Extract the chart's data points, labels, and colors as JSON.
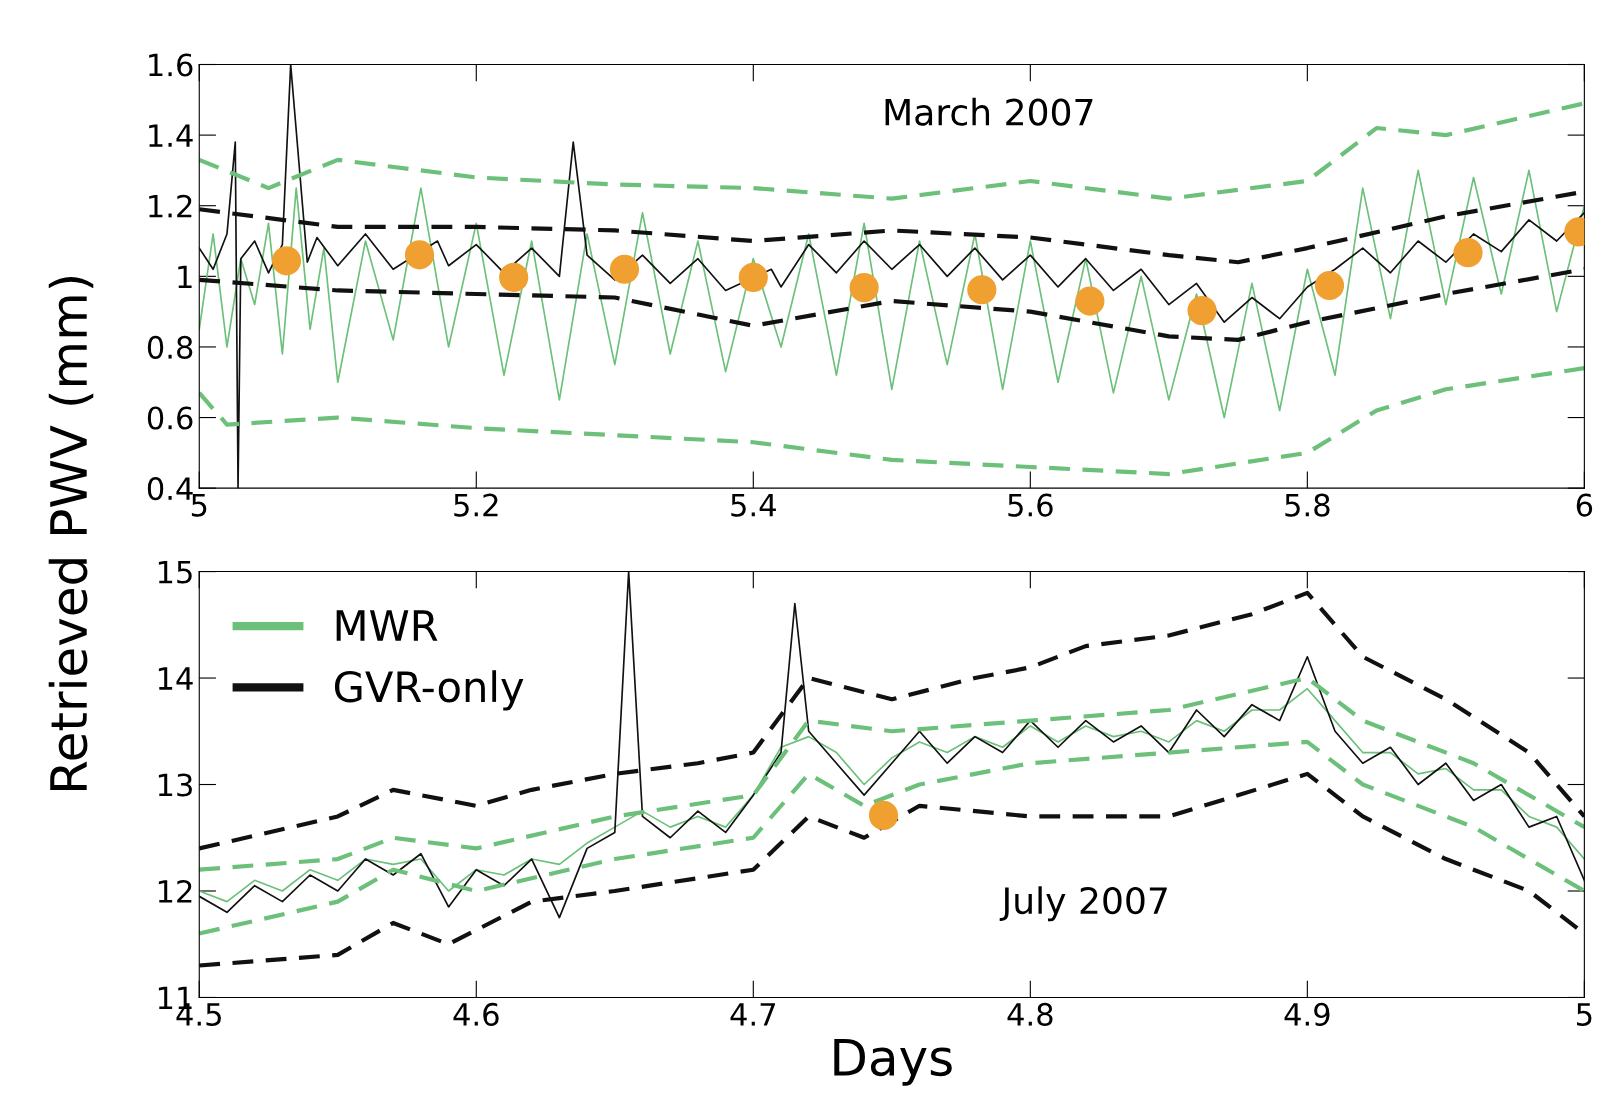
{
  "chart_data": [
    {
      "type": "line",
      "ylabel": "Retrieved PWV (mm)",
      "annotations": [
        "March 2007"
      ],
      "xlim": [
        5,
        6
      ],
      "xticks": [
        5,
        5.2,
        5.4,
        5.6,
        5.8,
        6
      ],
      "ylim": [
        0.4,
        1.6
      ],
      "yticks": [
        0.4,
        0.6,
        0.8,
        1,
        1.2,
        1.4,
        1.6
      ],
      "grid": false,
      "legend": false,
      "series": [
        {
          "color": "#6cc07a",
          "x": [
            5.0,
            5.01,
            5.02,
            5.03,
            5.04,
            5.05,
            5.06,
            5.07,
            5.08,
            5.09,
            5.1,
            5.12,
            5.14,
            5.16,
            5.18,
            5.2,
            5.22,
            5.24,
            5.26,
            5.28,
            5.3,
            5.32,
            5.34,
            5.36,
            5.38,
            5.4,
            5.42,
            5.44,
            5.46,
            5.48,
            5.5,
            5.52,
            5.54,
            5.56,
            5.58,
            5.6,
            5.62,
            5.64,
            5.66,
            5.68,
            5.7,
            5.72,
            5.74,
            5.76,
            5.78,
            5.8,
            5.82,
            5.84,
            5.86,
            5.88,
            5.9,
            5.92,
            5.94,
            5.96,
            5.98,
            6.0
          ],
          "values": [
            0.85,
            1.12,
            0.8,
            1.05,
            0.92,
            1.15,
            0.78,
            1.25,
            0.85,
            1.08,
            0.7,
            1.1,
            0.82,
            1.25,
            0.8,
            1.15,
            0.72,
            1.1,
            0.65,
            1.12,
            0.75,
            1.18,
            0.78,
            1.1,
            0.73,
            1.05,
            0.8,
            1.12,
            0.72,
            1.15,
            0.68,
            1.1,
            0.75,
            1.12,
            0.68,
            1.1,
            0.7,
            1.05,
            0.67,
            1.0,
            0.65,
            0.95,
            0.6,
            0.98,
            0.62,
            1.02,
            0.72,
            1.25,
            0.88,
            1.3,
            0.92,
            1.28,
            0.95,
            1.3,
            0.9,
            1.2
          ]
        },
        {
          "color": "#111111",
          "x": [
            5.0,
            5.01,
            5.02,
            5.026,
            5.028,
            5.03,
            5.04,
            5.05,
            5.06,
            5.066,
            5.078,
            5.085,
            5.1,
            5.12,
            5.14,
            5.172,
            5.18,
            5.2,
            5.22,
            5.24,
            5.26,
            5.27,
            5.28,
            5.3,
            5.32,
            5.34,
            5.36,
            5.38,
            5.413,
            5.42,
            5.44,
            5.46,
            5.48,
            5.5,
            5.52,
            5.54,
            5.56,
            5.58,
            5.6,
            5.62,
            5.64,
            5.66,
            5.68,
            5.7,
            5.72,
            5.74,
            5.76,
            5.78,
            5.8,
            5.82,
            5.84,
            5.86,
            5.88,
            5.9,
            5.92,
            5.94,
            5.96,
            5.98,
            6.0
          ],
          "values": [
            1.08,
            1.02,
            1.12,
            1.38,
            0.4,
            1.05,
            1.1,
            1.01,
            1.09,
            1.6,
            1.04,
            1.11,
            1.03,
            1.12,
            1.02,
            1.1,
            1.03,
            1.09,
            1.01,
            1.08,
            1.0,
            1.38,
            1.06,
            0.99,
            1.06,
            0.98,
            1.05,
            0.96,
            1.02,
            0.97,
            1.09,
            1.01,
            1.1,
            1.02,
            1.09,
            1.0,
            1.08,
            0.99,
            1.06,
            0.97,
            1.05,
            0.96,
            1.02,
            0.92,
            0.98,
            0.87,
            0.94,
            0.88,
            0.97,
            1.02,
            1.08,
            1.01,
            1.1,
            1.04,
            1.12,
            1.07,
            1.16,
            1.1,
            1.18
          ]
        },
        {
          "color": "#6cc07a",
          "line_style": "dashed",
          "x": [
            5.0,
            5.05,
            5.1,
            5.2,
            5.3,
            5.4,
            5.5,
            5.6,
            5.7,
            5.8,
            5.85,
            5.9,
            6.0
          ],
          "values": [
            1.33,
            1.25,
            1.33,
            1.28,
            1.26,
            1.25,
            1.22,
            1.27,
            1.22,
            1.27,
            1.42,
            1.4,
            1.49
          ]
        },
        {
          "color": "#6cc07a",
          "line_style": "dashed",
          "x": [
            5.0,
            5.02,
            5.1,
            5.2,
            5.3,
            5.4,
            5.5,
            5.6,
            5.7,
            5.8,
            5.85,
            5.9,
            6.0
          ],
          "values": [
            0.67,
            0.58,
            0.6,
            0.57,
            0.55,
            0.53,
            0.48,
            0.46,
            0.44,
            0.5,
            0.62,
            0.68,
            0.74
          ]
        },
        {
          "color": "#111111",
          "line_style": "dashed",
          "x": [
            5.0,
            5.1,
            5.2,
            5.3,
            5.4,
            5.5,
            5.6,
            5.7,
            5.75,
            5.8,
            5.9,
            6.0
          ],
          "values": [
            1.19,
            1.14,
            1.14,
            1.13,
            1.1,
            1.13,
            1.11,
            1.06,
            1.04,
            1.08,
            1.17,
            1.24
          ]
        },
        {
          "color": "#111111",
          "line_style": "dashed",
          "x": [
            5.0,
            5.1,
            5.2,
            5.3,
            5.4,
            5.5,
            5.6,
            5.7,
            5.75,
            5.8,
            5.9,
            6.0
          ],
          "values": [
            0.99,
            0.96,
            0.95,
            0.94,
            0.86,
            0.93,
            0.9,
            0.83,
            0.82,
            0.87,
            0.95,
            1.02
          ]
        },
        {
          "type": "scatter",
          "marker": "circle",
          "color": "#f0a030",
          "x": [
            5.063,
            5.159,
            5.227,
            5.307,
            5.4,
            5.48,
            5.565,
            5.643,
            5.724,
            5.816,
            5.916,
            5.996
          ],
          "values": [
            1.044,
            1.061,
            0.997,
            1.02,
            0.997,
            0.968,
            0.962,
            0.93,
            0.903,
            0.974,
            1.067,
            1.126
          ]
        }
      ]
    },
    {
      "type": "line",
      "xlabel": "Days",
      "annotations": [
        "July 2007"
      ],
      "xlim": [
        4.5,
        5
      ],
      "xticks": [
        4.5,
        4.6,
        4.7,
        4.8,
        4.9,
        5
      ],
      "ylim": [
        11,
        15
      ],
      "yticks": [
        11,
        12,
        13,
        14,
        15
      ],
      "grid": false,
      "legend": "top left",
      "series": [
        {
          "name": "MWR",
          "color": "#6cc07a",
          "x": [
            4.5,
            4.51,
            4.52,
            4.53,
            4.54,
            4.55,
            4.56,
            4.57,
            4.58,
            4.59,
            4.6,
            4.61,
            4.62,
            4.63,
            4.64,
            4.65,
            4.66,
            4.67,
            4.68,
            4.69,
            4.7,
            4.71,
            4.72,
            4.73,
            4.74,
            4.75,
            4.76,
            4.77,
            4.78,
            4.79,
            4.8,
            4.81,
            4.82,
            4.83,
            4.84,
            4.85,
            4.86,
            4.87,
            4.88,
            4.89,
            4.9,
            4.91,
            4.92,
            4.93,
            4.94,
            4.95,
            4.96,
            4.97,
            4.98,
            4.99,
            5.0
          ],
          "values": [
            12.0,
            11.9,
            12.1,
            12.0,
            12.2,
            12.1,
            12.3,
            12.25,
            12.3,
            12.0,
            12.2,
            12.15,
            12.3,
            12.25,
            12.45,
            12.6,
            12.75,
            12.6,
            12.7,
            12.6,
            12.9,
            13.35,
            13.45,
            13.3,
            13.0,
            13.25,
            13.4,
            13.3,
            13.45,
            13.35,
            13.55,
            13.4,
            13.55,
            13.45,
            13.5,
            13.4,
            13.6,
            13.5,
            13.7,
            13.7,
            13.9,
            13.6,
            13.3,
            13.3,
            13.1,
            13.15,
            12.95,
            12.95,
            12.7,
            12.6,
            12.3
          ]
        },
        {
          "name": "GVR-only",
          "color": "#111111",
          "x": [
            4.5,
            4.51,
            4.52,
            4.53,
            4.54,
            4.55,
            4.56,
            4.57,
            4.58,
            4.59,
            4.6,
            4.61,
            4.62,
            4.63,
            4.64,
            4.65,
            4.655,
            4.66,
            4.67,
            4.68,
            4.69,
            4.7,
            4.71,
            4.715,
            4.72,
            4.73,
            4.74,
            4.75,
            4.76,
            4.77,
            4.78,
            4.79,
            4.8,
            4.81,
            4.82,
            4.83,
            4.84,
            4.85,
            4.86,
            4.87,
            4.88,
            4.89,
            4.9,
            4.91,
            4.92,
            4.93,
            4.94,
            4.95,
            4.96,
            4.97,
            4.98,
            4.99,
            5.0
          ],
          "values": [
            11.95,
            11.8,
            12.05,
            11.9,
            12.15,
            12.0,
            12.3,
            12.15,
            12.35,
            11.85,
            12.2,
            12.05,
            12.3,
            11.75,
            12.4,
            12.55,
            15.0,
            12.7,
            12.5,
            12.75,
            12.55,
            12.9,
            13.3,
            14.7,
            13.5,
            13.2,
            12.9,
            13.2,
            13.5,
            13.2,
            13.45,
            13.3,
            13.6,
            13.35,
            13.6,
            13.4,
            13.55,
            13.3,
            13.7,
            13.45,
            13.75,
            13.6,
            14.2,
            13.5,
            13.2,
            13.35,
            13.0,
            13.2,
            12.85,
            13.0,
            12.6,
            12.7,
            12.1
          ]
        },
        {
          "color": "#6cc07a",
          "line_style": "dashed",
          "x": [
            4.5,
            4.55,
            4.57,
            4.6,
            4.65,
            4.7,
            4.72,
            4.75,
            4.8,
            4.85,
            4.9,
            4.92,
            4.96,
            5.0
          ],
          "values": [
            12.2,
            12.3,
            12.5,
            12.4,
            12.7,
            12.9,
            13.6,
            13.5,
            13.6,
            13.7,
            14.0,
            13.6,
            13.2,
            12.6
          ]
        },
        {
          "color": "#6cc07a",
          "line_style": "dashed",
          "x": [
            4.5,
            4.55,
            4.57,
            4.6,
            4.65,
            4.7,
            4.72,
            4.74,
            4.76,
            4.8,
            4.85,
            4.9,
            4.92,
            4.96,
            5.0
          ],
          "values": [
            11.6,
            11.9,
            12.2,
            12.0,
            12.3,
            12.5,
            13.1,
            12.8,
            13.0,
            13.2,
            13.3,
            13.4,
            13.0,
            12.6,
            12.0
          ]
        },
        {
          "color": "#111111",
          "line_style": "dashed",
          "x": [
            4.5,
            4.55,
            4.57,
            4.6,
            4.62,
            4.65,
            4.68,
            4.7,
            4.72,
            4.75,
            4.78,
            4.8,
            4.82,
            4.85,
            4.88,
            4.9,
            4.92,
            4.95,
            4.98,
            5.0
          ],
          "values": [
            12.4,
            12.7,
            12.95,
            12.8,
            12.95,
            13.1,
            13.2,
            13.3,
            14.0,
            13.8,
            14.0,
            14.1,
            14.3,
            14.4,
            14.6,
            14.8,
            14.2,
            13.8,
            13.3,
            12.7
          ]
        },
        {
          "color": "#111111",
          "line_style": "dashed",
          "x": [
            4.5,
            4.55,
            4.57,
            4.59,
            4.62,
            4.65,
            4.7,
            4.72,
            4.74,
            4.76,
            4.8,
            4.85,
            4.9,
            4.92,
            4.95,
            4.98,
            5.0
          ],
          "values": [
            11.3,
            11.4,
            11.7,
            11.5,
            11.9,
            12.0,
            12.2,
            12.7,
            12.5,
            12.8,
            12.7,
            12.7,
            13.1,
            12.7,
            12.3,
            12.0,
            11.6
          ]
        },
        {
          "type": "scatter",
          "marker": "circle",
          "color": "#f0a030",
          "x": [
            4.747
          ],
          "values": [
            12.71
          ]
        }
      ]
    }
  ]
}
